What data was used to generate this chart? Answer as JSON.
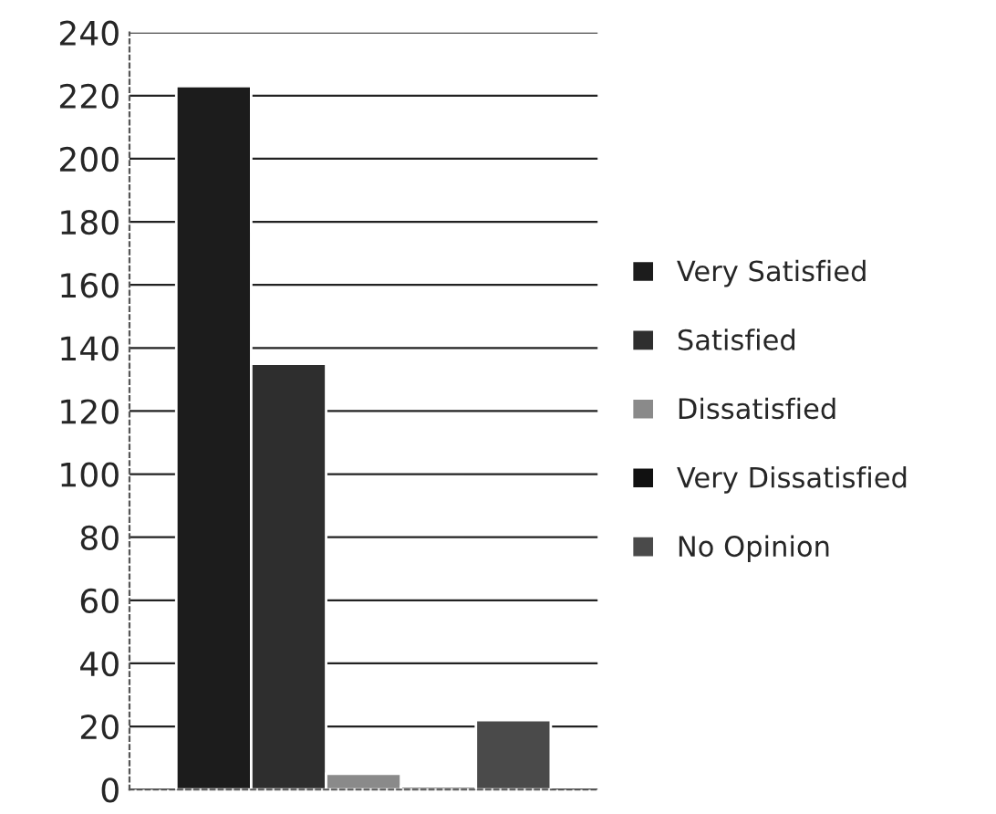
{
  "chart_data": {
    "type": "bar",
    "categories": [
      null
    ],
    "series": [
      {
        "name": "Very Satisfied",
        "color": "#1c1c1c",
        "values": [
          223
        ]
      },
      {
        "name": "Satisfied",
        "color": "#2e2e2e",
        "values": [
          135
        ]
      },
      {
        "name": "Dissatisfied",
        "color": "#8a8a8a",
        "values": [
          5
        ]
      },
      {
        "name": "Very Dissatisfied",
        "color": "#111111",
        "values": [
          1
        ]
      },
      {
        "name": "No Opinion",
        "color": "#4a4a4a",
        "values": [
          22
        ]
      }
    ],
    "ylim": [
      0,
      240
    ],
    "yticks": [
      0,
      20,
      40,
      60,
      80,
      100,
      120,
      140,
      160,
      180,
      200,
      220,
      240
    ],
    "grid": "y",
    "legend": "right"
  }
}
